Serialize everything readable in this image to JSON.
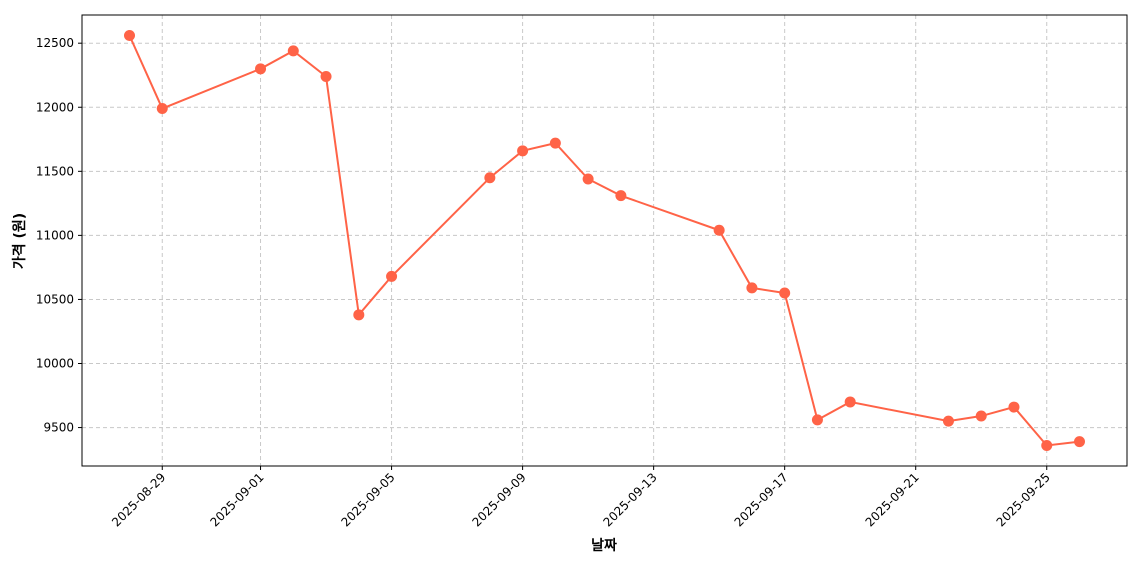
{
  "chart_data": {
    "type": "line",
    "xlabel": "날짜",
    "ylabel": "가격 (원)",
    "x": [
      "2025-08-28",
      "2025-08-29",
      "2025-09-01",
      "2025-09-02",
      "2025-09-03",
      "2025-09-04",
      "2025-09-05",
      "2025-09-08",
      "2025-09-09",
      "2025-09-10",
      "2025-09-11",
      "2025-09-12",
      "2025-09-15",
      "2025-09-16",
      "2025-09-17",
      "2025-09-18",
      "2025-09-19",
      "2025-09-22",
      "2025-09-23",
      "2025-09-24",
      "2025-09-25",
      "2025-09-26"
    ],
    "series": [
      {
        "color": "#ff6347",
        "values": [
          12560,
          11990,
          12300,
          12440,
          12240,
          10380,
          10680,
          11450,
          11660,
          11720,
          11440,
          11310,
          11040,
          10590,
          10550,
          9560,
          9700,
          9550,
          9590,
          9660,
          9360,
          9390
        ]
      }
    ],
    "xticks": [
      "2025-08-29",
      "2025-09-01",
      "2025-09-05",
      "2025-09-09",
      "2025-09-13",
      "2025-09-17",
      "2025-09-21",
      "2025-09-25"
    ],
    "ylim": [
      9200,
      12720
    ],
    "yticks": [
      9500,
      10000,
      10500,
      11000,
      11500,
      12000,
      12500
    ],
    "grid": true
  }
}
